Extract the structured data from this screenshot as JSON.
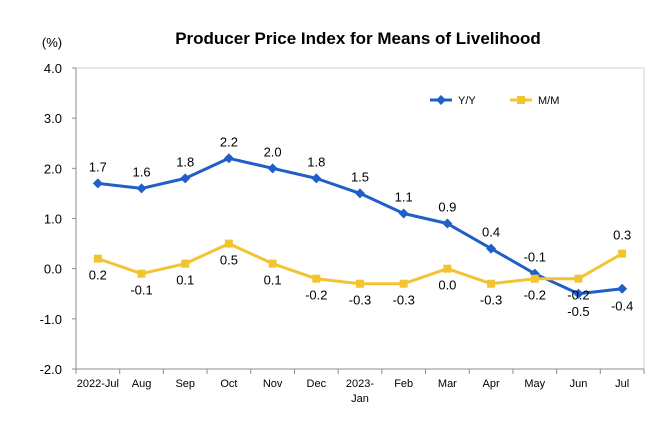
{
  "chart_data": {
    "type": "line",
    "title": "Producer Price Index for Means of Livelihood",
    "unit_label": "(%)",
    "categories": [
      [
        "2022-Jul"
      ],
      [
        "Aug"
      ],
      [
        "Sep"
      ],
      [
        "Oct"
      ],
      [
        "Nov"
      ],
      [
        "Dec"
      ],
      [
        "2023-",
        "Jan"
      ],
      [
        "Feb"
      ],
      [
        "Mar"
      ],
      [
        "Apr"
      ],
      [
        "May"
      ],
      [
        "Jun"
      ],
      [
        "Jul"
      ]
    ],
    "series": [
      {
        "name": "Y/Y",
        "color": "#1f5fc7",
        "marker": "diamond",
        "values": [
          1.7,
          1.6,
          1.8,
          2.2,
          2.0,
          1.8,
          1.5,
          1.1,
          0.9,
          0.4,
          -0.1,
          -0.5,
          -0.4
        ],
        "labels": [
          "1.7",
          "1.6",
          "1.8",
          "2.2",
          "2.0",
          "1.8",
          "1.5",
          "1.1",
          "0.9",
          "0.4",
          "-0.1",
          "-0.5",
          "-0.4"
        ]
      },
      {
        "name": "M/M",
        "color": "#f4c430",
        "marker": "square",
        "values": [
          0.2,
          -0.1,
          0.1,
          0.5,
          0.1,
          -0.2,
          -0.3,
          -0.3,
          0.0,
          -0.3,
          -0.2,
          -0.2,
          0.3
        ],
        "labels": [
          "0.2",
          "-0.1",
          "0.1",
          "0.5",
          "0.1",
          "-0.2",
          "-0.3",
          "-0.3",
          "0.0",
          "-0.3",
          "-0.2",
          "-0.2",
          "0.3"
        ]
      }
    ],
    "ylim": [
      -2.0,
      4.0
    ],
    "yticks": [
      "4.0",
      "3.0",
      "2.0",
      "1.0",
      "0.0",
      "-1.0",
      "-2.0"
    ],
    "ytick_values": [
      4.0,
      3.0,
      2.0,
      1.0,
      0.0,
      -1.0,
      -2.0
    ],
    "grid": false,
    "legend_position": "top-right"
  }
}
